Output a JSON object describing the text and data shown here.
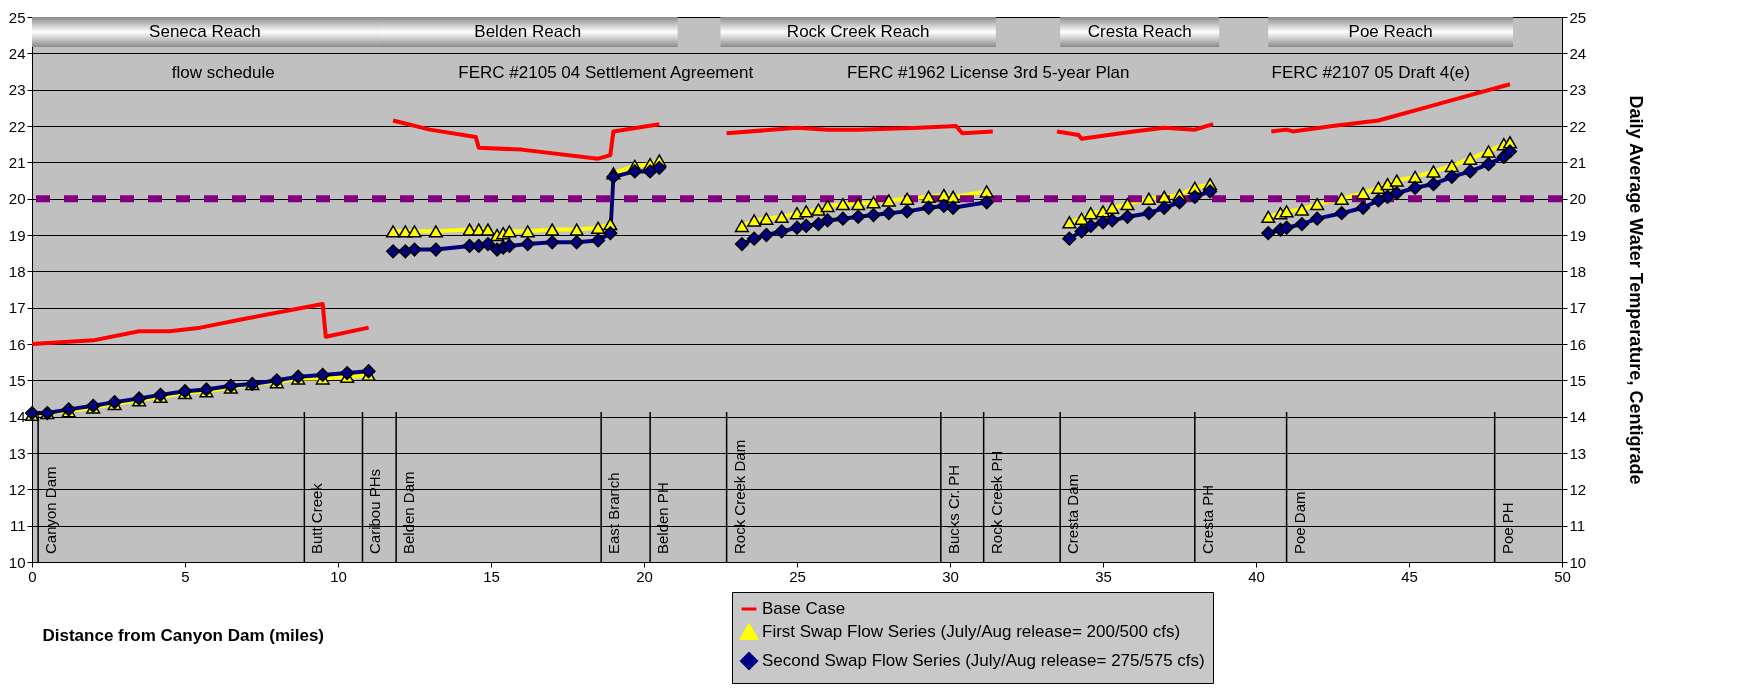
{
  "chart_data": {
    "type": "line",
    "xlabel": "Distance from Canyon Dam (miles)",
    "y2label": "Daily Average Water Temperature, Centigrade",
    "xlim": [
      0,
      50
    ],
    "xticks": [
      0,
      5,
      10,
      15,
      20,
      25,
      30,
      35,
      40,
      45,
      50
    ],
    "ylim": [
      10,
      25
    ],
    "yticks": [
      10,
      11,
      12,
      13,
      14,
      15,
      16,
      17,
      18,
      19,
      20,
      21,
      22,
      23,
      24,
      25
    ],
    "y2lim": [
      10,
      25
    ],
    "y2ticks": [
      10,
      11,
      12,
      13,
      14,
      15,
      16,
      17,
      18,
      19,
      20,
      21,
      22,
      23,
      24,
      25
    ],
    "grid": "y",
    "legend": "bottom right",
    "line_style": "solid",
    "series": [
      {
        "name": "Base Case",
        "color": "#ff0000",
        "marker": "none",
        "x": [
          0,
          2,
          3.5,
          4.5,
          5.5,
          7,
          9.5,
          9.6,
          11,
          null,
          11.8,
          13,
          14.5,
          14.6,
          16,
          18.5,
          18.9,
          19,
          20.5,
          null,
          22.7,
          25,
          26,
          27,
          29,
          30.2,
          30.4,
          31.4,
          null,
          33.5,
          34.2,
          34.3,
          36,
          37,
          38,
          38.6,
          null,
          40.5,
          41,
          41.2,
          42.5,
          44,
          45.5,
          47,
          48.3
        ],
        "values": [
          16.0,
          16.1,
          16.35,
          16.35,
          16.45,
          16.7,
          17.1,
          16.2,
          16.45,
          null,
          22.15,
          21.9,
          21.7,
          21.4,
          21.35,
          21.1,
          21.2,
          21.85,
          22.05,
          null,
          21.8,
          21.95,
          21.9,
          21.9,
          21.95,
          22.0,
          21.8,
          21.85,
          null,
          21.85,
          21.75,
          21.65,
          21.85,
          21.95,
          21.9,
          22.05,
          null,
          21.85,
          21.9,
          21.85,
          22.0,
          22.15,
          22.5,
          22.85,
          23.15
        ]
      },
      {
        "name": "First Swap Flow Series (July/Aug release= 200/500 cfs)",
        "color": "#ffff00",
        "marker": "triangle",
        "x": [
          0,
          0.5,
          1.2,
          2,
          2.7,
          3.5,
          4.2,
          5,
          5.7,
          6.5,
          7.2,
          8,
          8.7,
          9.5,
          10.3,
          11,
          null,
          11.8,
          12.2,
          12.5,
          13.2,
          14.3,
          14.6,
          14.9,
          15.2,
          15.4,
          15.6,
          16.2,
          17,
          17.8,
          18.5,
          18.9,
          19.0,
          19.7,
          20.2,
          20.5,
          null,
          23.2,
          23.6,
          24,
          24.5,
          25,
          25.3,
          25.7,
          26,
          26.5,
          27,
          27.5,
          28,
          28.6,
          29.3,
          29.8,
          30.1,
          31.2,
          null,
          33.9,
          34.3,
          34.6,
          35,
          35.3,
          35.8,
          36.5,
          37,
          37.5,
          38,
          38.5,
          null,
          40.4,
          40.8,
          41,
          41.5,
          42,
          42.8,
          43.5,
          44,
          44.3,
          44.6,
          45.2,
          45.8,
          46.4,
          47,
          47.6,
          48.1,
          48.3
        ],
        "values": [
          14.05,
          14.1,
          14.15,
          14.25,
          14.35,
          14.45,
          14.55,
          14.65,
          14.7,
          14.8,
          14.9,
          14.95,
          15.05,
          15.05,
          15.1,
          15.15,
          null,
          19.1,
          19.1,
          19.1,
          19.1,
          19.15,
          19.15,
          19.15,
          19.0,
          19.05,
          19.1,
          19.1,
          19.15,
          19.15,
          19.2,
          19.3,
          20.7,
          20.9,
          20.95,
          21.05,
          null,
          19.25,
          19.4,
          19.45,
          19.5,
          19.6,
          19.65,
          19.7,
          19.8,
          19.85,
          19.85,
          19.9,
          19.95,
          20.0,
          20.05,
          20.1,
          20.05,
          20.2,
          null,
          19.35,
          19.45,
          19.6,
          19.65,
          19.75,
          19.85,
          20.0,
          20.05,
          20.1,
          20.3,
          20.4,
          null,
          19.5,
          19.6,
          19.65,
          19.7,
          19.85,
          20.0,
          20.15,
          20.3,
          20.4,
          20.5,
          20.6,
          20.75,
          20.9,
          21.1,
          21.3,
          21.5,
          21.55
        ]
      },
      {
        "name": "Second Swap Flow Series (July/Aug release= 275/575 cfs)",
        "color": "#000080",
        "marker": "diamond",
        "x": [
          0,
          0.5,
          1.2,
          2,
          2.7,
          3.5,
          4.2,
          5,
          5.7,
          6.5,
          7.2,
          8,
          8.7,
          9.5,
          10.3,
          11,
          null,
          11.8,
          12.2,
          12.5,
          13.2,
          14.3,
          14.6,
          14.9,
          15.2,
          15.4,
          15.6,
          16.2,
          17,
          17.8,
          18.5,
          18.9,
          19.0,
          19.7,
          20.2,
          20.5,
          null,
          23.2,
          23.6,
          24,
          24.5,
          25,
          25.3,
          25.7,
          26,
          26.5,
          27,
          27.5,
          28,
          28.6,
          29.3,
          29.8,
          30.1,
          31.2,
          null,
          33.9,
          34.3,
          34.6,
          35,
          35.3,
          35.8,
          36.5,
          37,
          37.5,
          38,
          38.5,
          null,
          40.4,
          40.8,
          41,
          41.5,
          42,
          42.8,
          43.5,
          44,
          44.3,
          44.6,
          45.2,
          45.8,
          46.4,
          47,
          47.6,
          48.1,
          48.3
        ],
        "values": [
          14.1,
          14.1,
          14.2,
          14.3,
          14.4,
          14.5,
          14.6,
          14.7,
          14.75,
          14.85,
          14.9,
          15.0,
          15.1,
          15.15,
          15.2,
          15.25,
          null,
          18.55,
          18.55,
          18.6,
          18.6,
          18.7,
          18.7,
          18.75,
          18.6,
          18.65,
          18.7,
          18.75,
          18.8,
          18.8,
          18.85,
          19.05,
          20.6,
          20.75,
          20.75,
          20.85,
          null,
          18.75,
          18.9,
          19.0,
          19.1,
          19.2,
          19.25,
          19.3,
          19.4,
          19.45,
          19.5,
          19.55,
          19.6,
          19.65,
          19.75,
          19.8,
          19.75,
          19.9,
          null,
          18.9,
          19.1,
          19.25,
          19.35,
          19.4,
          19.5,
          19.6,
          19.75,
          19.9,
          20.05,
          20.2,
          null,
          19.05,
          19.15,
          19.2,
          19.3,
          19.45,
          19.6,
          19.75,
          19.95,
          20.05,
          20.15,
          20.3,
          20.4,
          20.6,
          20.75,
          20.95,
          21.15,
          21.3
        ]
      }
    ],
    "ref_lines": [
      {
        "axis": "y",
        "value": 20,
        "color": "#800080",
        "line_style": "dashed"
      },
      {
        "axis": "x",
        "value": 0.2,
        "label": "Canyon Dam"
      },
      {
        "axis": "x",
        "value": 8.9,
        "label": "Butt Creek"
      },
      {
        "axis": "x",
        "value": 10.8,
        "label": "Caribou PHs"
      },
      {
        "axis": "x",
        "value": 11.9,
        "label": "Belden Dam"
      },
      {
        "axis": "x",
        "value": 18.6,
        "label": "East Branch"
      },
      {
        "axis": "x",
        "value": 20.2,
        "label": "Belden PH"
      },
      {
        "axis": "x",
        "value": 22.7,
        "label": "Rock Creek Dam"
      },
      {
        "axis": "x",
        "value": 29.7,
        "label": "Bucks Cr. PH"
      },
      {
        "axis": "x",
        "value": 31.1,
        "label": "Rock Creek PH"
      },
      {
        "axis": "x",
        "value": 33.6,
        "label": "Cresta Dam"
      },
      {
        "axis": "x",
        "value": 38.0,
        "label": "Cresta PH"
      },
      {
        "axis": "x",
        "value": 41.0,
        "label": "Poe Dam"
      },
      {
        "axis": "x",
        "value": 47.8,
        "label": "Poe PH"
      }
    ],
    "bands": [
      {
        "axis": "x",
        "from": 0,
        "to": 11.3,
        "label": "Seneca Reach"
      },
      {
        "axis": "x",
        "from": 11.3,
        "to": 21.1,
        "label": "Belden Reach"
      },
      {
        "axis": "x",
        "from": 22.5,
        "to": 31.5,
        "label": "Rock Creek Reach"
      },
      {
        "axis": "x",
        "from": 33.6,
        "to": 38.8,
        "label": "Cresta Reach"
      },
      {
        "axis": "x",
        "from": 40.4,
        "to": 48.4,
        "label": "Poe Reach"
      }
    ],
    "annotations": [
      "flow schedule",
      "FERC #2105 04 Settlement Agreement",
      "FERC #1962 License 3rd 5-year Plan",
      "FERC #2107 05 Draft 4(e)"
    ]
  }
}
